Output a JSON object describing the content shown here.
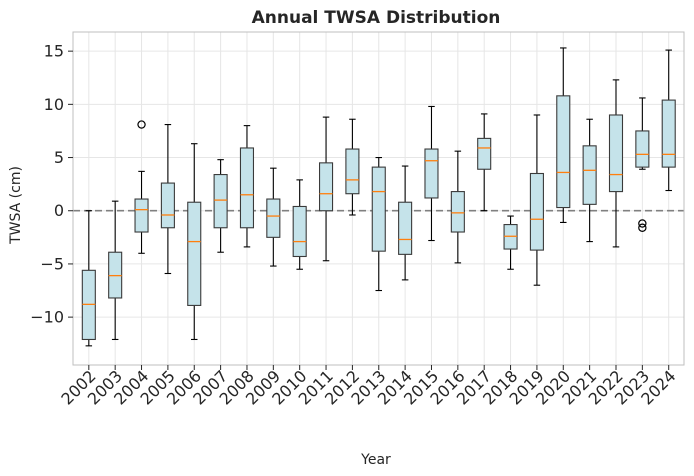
{
  "chart_data": {
    "type": "boxplot",
    "title": "Annual TWSA Distribution",
    "xlabel": "Year",
    "ylabel": "TWSA (cm)",
    "ylim": [
      -14.5,
      16.8
    ],
    "yticks": [
      -10,
      -5,
      0,
      5,
      10,
      15
    ],
    "ytick_labels": [
      "−10",
      "−5",
      "0",
      "5",
      "10",
      "15"
    ],
    "grid": true,
    "reference_line": 0,
    "colors": {
      "box_fill": "#c5e3ea",
      "box_edge": "#3a3a3a",
      "median": "#ff7f0e",
      "zero_line": "#808080",
      "grid": "#e6e6e6"
    },
    "categories": [
      "2002",
      "2003",
      "2004",
      "2005",
      "2006",
      "2007",
      "2008",
      "2009",
      "2010",
      "2011",
      "2012",
      "2013",
      "2014",
      "2015",
      "2016",
      "2017",
      "2018",
      "2019",
      "2020",
      "2021",
      "2022",
      "2023",
      "2024"
    ],
    "boxes": [
      {
        "whislo": -12.7,
        "q1": -12.1,
        "med": -8.8,
        "q3": -5.6,
        "whishi": 0.0,
        "fliers": []
      },
      {
        "whislo": -12.1,
        "q1": -8.2,
        "med": -6.1,
        "q3": -3.9,
        "whishi": 0.9,
        "fliers": []
      },
      {
        "whislo": -4.0,
        "q1": -2.0,
        "med": 0.1,
        "q3": 1.1,
        "whishi": 3.7,
        "fliers": [
          8.1
        ]
      },
      {
        "whislo": -5.9,
        "q1": -1.6,
        "med": -0.4,
        "q3": 2.6,
        "whishi": 8.1,
        "fliers": []
      },
      {
        "whislo": -12.1,
        "q1": -8.9,
        "med": -2.9,
        "q3": 0.8,
        "whishi": 6.3,
        "fliers": []
      },
      {
        "whislo": -3.9,
        "q1": -1.6,
        "med": 1.0,
        "q3": 3.4,
        "whishi": 4.8,
        "fliers": []
      },
      {
        "whislo": -3.4,
        "q1": -1.6,
        "med": 1.5,
        "q3": 5.9,
        "whishi": 8.0,
        "fliers": []
      },
      {
        "whislo": -5.2,
        "q1": -2.5,
        "med": -0.5,
        "q3": 1.1,
        "whishi": 4.0,
        "fliers": []
      },
      {
        "whislo": -5.5,
        "q1": -4.3,
        "med": -2.9,
        "q3": 0.4,
        "whishi": 2.9,
        "fliers": []
      },
      {
        "whislo": -4.7,
        "q1": 0.0,
        "med": 1.6,
        "q3": 4.5,
        "whishi": 8.8,
        "fliers": []
      },
      {
        "whislo": -0.4,
        "q1": 1.6,
        "med": 2.9,
        "q3": 5.8,
        "whishi": 8.6,
        "fliers": []
      },
      {
        "whislo": -7.5,
        "q1": -3.8,
        "med": 1.8,
        "q3": 4.1,
        "whishi": 5.0,
        "fliers": []
      },
      {
        "whislo": -6.5,
        "q1": -4.1,
        "med": -2.7,
        "q3": 0.8,
        "whishi": 4.2,
        "fliers": []
      },
      {
        "whislo": -2.8,
        "q1": 1.2,
        "med": 4.7,
        "q3": 5.8,
        "whishi": 9.8,
        "fliers": []
      },
      {
        "whislo": -4.9,
        "q1": -2.0,
        "med": -0.2,
        "q3": 1.8,
        "whishi": 5.6,
        "fliers": []
      },
      {
        "whislo": 0.0,
        "q1": 3.9,
        "med": 5.9,
        "q3": 6.8,
        "whishi": 9.1,
        "fliers": []
      },
      {
        "whislo": -5.5,
        "q1": -3.6,
        "med": -2.4,
        "q3": -1.3,
        "whishi": -0.5,
        "fliers": []
      },
      {
        "whislo": -7.0,
        "q1": -3.7,
        "med": -0.8,
        "q3": 3.5,
        "whishi": 9.0,
        "fliers": []
      },
      {
        "whislo": -1.1,
        "q1": 0.3,
        "med": 3.6,
        "q3": 10.8,
        "whishi": 15.3,
        "fliers": []
      },
      {
        "whislo": -2.9,
        "q1": 0.6,
        "med": 3.8,
        "q3": 6.1,
        "whishi": 8.6,
        "fliers": []
      },
      {
        "whislo": -3.4,
        "q1": 1.8,
        "med": 3.4,
        "q3": 9.0,
        "whishi": 12.3,
        "fliers": []
      },
      {
        "whislo": 3.9,
        "q1": 4.1,
        "med": 5.3,
        "q3": 7.5,
        "whishi": 10.6,
        "fliers": [
          -1.2,
          -1.6
        ]
      },
      {
        "whislo": 1.9,
        "q1": 4.1,
        "med": 5.3,
        "q3": 10.4,
        "whishi": 15.1,
        "fliers": []
      }
    ]
  }
}
